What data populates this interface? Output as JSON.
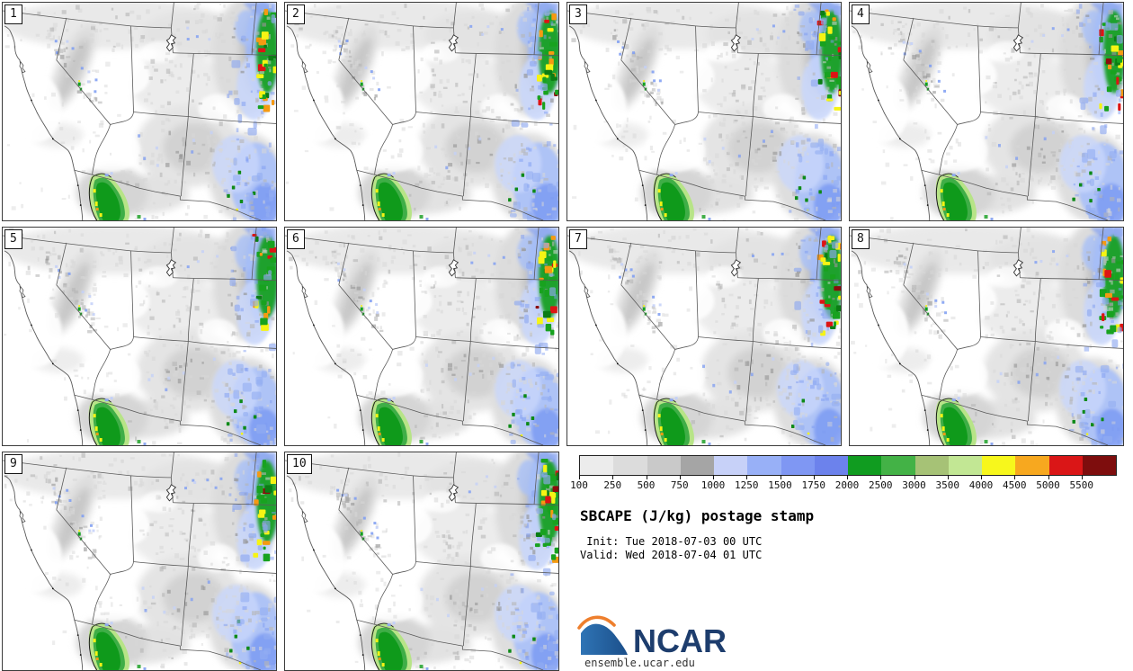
{
  "panels": [
    {
      "label": "1"
    },
    {
      "label": "2"
    },
    {
      "label": "3"
    },
    {
      "label": "4"
    },
    {
      "label": "5"
    },
    {
      "label": "6"
    },
    {
      "label": "7"
    },
    {
      "label": "8"
    },
    {
      "label": "9"
    },
    {
      "label": "10"
    }
  ],
  "legend": {
    "title": "SBCAPE (J/kg) postage stamp",
    "init_line": " Init: Tue 2018-07-03 00 UTC",
    "valid_line": "Valid: Wed 2018-07-04 01 UTC",
    "logo_text": "NCAR",
    "url": "ensemble.ucar.edu"
  },
  "colorbar": {
    "levels": [
      "100",
      "250",
      "500",
      "750",
      "1000",
      "1250",
      "1500",
      "1750",
      "2000",
      "2500",
      "3000",
      "3500",
      "4000",
      "4500",
      "5000",
      "5500"
    ],
    "colors": [
      "#ececec",
      "#dcdcdc",
      "#c9c9c9",
      "#a5a5a5",
      "#c7d1f8",
      "#98b0f7",
      "#7f97f3",
      "#6c82ec",
      "#109c20",
      "#43b246",
      "#a6c276",
      "#c2e794",
      "#f7f71c",
      "#f7a81f",
      "#da1617",
      "#7e0d0d"
    ]
  },
  "colors": {
    "ncar_text_blue": "#1d3d6d",
    "logo_blue_light": "#2f74b5",
    "logo_blue_dark": "#1b4f8a",
    "logo_orange": "#ee7f2d",
    "state_border": "#5a5a5a",
    "panel_border": "#3c3c3c"
  },
  "chart_data": {
    "type": "heatmap",
    "title": "SBCAPE (J/kg) postage stamp",
    "variable": "SBCAPE",
    "units": "J/kg",
    "init": "Tue 2018-07-03 00 UTC",
    "valid": "Wed 2018-07-04 01 UTC",
    "ensemble_members": [
      "1",
      "2",
      "3",
      "4",
      "5",
      "6",
      "7",
      "8",
      "9",
      "10"
    ],
    "levels": [
      100,
      250,
      500,
      750,
      1000,
      1250,
      1500,
      1750,
      2000,
      2500,
      3000,
      3500,
      4000,
      4500,
      5000,
      5500
    ],
    "palette": [
      "#ececec",
      "#dcdcdc",
      "#c9c9c9",
      "#a5a5a5",
      "#c7d1f8",
      "#98b0f7",
      "#7f97f3",
      "#6c82ec",
      "#109c20",
      "#43b246",
      "#a6c276",
      "#c2e794",
      "#f7f71c",
      "#f7a81f",
      "#da1617",
      "#7e0d0d"
    ],
    "region": "Southwestern United States (CA, NV, UT, AZ, CO, NM, WY) and northwestern Mexico",
    "layout": "10 map postage stamps in a 4x3 grid, legend and titles in the lower-right cell",
    "legend_position": "bottom-right",
    "source_label": "ensemble.ucar.edu"
  }
}
